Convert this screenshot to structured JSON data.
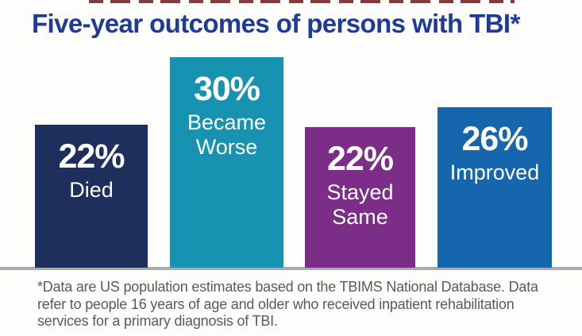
{
  "header": {
    "title": "Five-year outcomes of persons with TBI*",
    "title_color": "#1e3c96"
  },
  "chart_data": {
    "type": "bar",
    "title": "Five-year outcomes of persons with TBI*",
    "categories": [
      "Died",
      "Became Worse",
      "Stayed Same",
      "Improved"
    ],
    "values": [
      22,
      30,
      22,
      26
    ],
    "unit": "percent",
    "ylim": [
      0,
      33
    ],
    "axes": "none",
    "grid": false,
    "data_labels": "inside-top",
    "baseline_color": "#a8aaad",
    "bars": [
      {
        "value": 22,
        "pct_label": "22%",
        "label_lines": [
          "Died"
        ],
        "color": "#1e2f5e"
      },
      {
        "value": 30,
        "pct_label": "30%",
        "label_lines": [
          "Became",
          "Worse"
        ],
        "color": "#1793b1"
      },
      {
        "value": 22,
        "pct_label": "22%",
        "label_lines": [
          "Stayed",
          "Same"
        ],
        "color": "#7b2d87"
      },
      {
        "value": 26,
        "pct_label": "26%",
        "label_lines": [
          "Improved"
        ],
        "color": "#1566ad"
      }
    ]
  },
  "footnote": {
    "color": "#595a5c",
    "lines": [
      "*Data are US population estimates based on the TBIMS National Database. Data",
      "refer to people 16 years of age and older who received inpatient rehabilitation",
      "services for a primary diagnosis of TBI."
    ]
  }
}
